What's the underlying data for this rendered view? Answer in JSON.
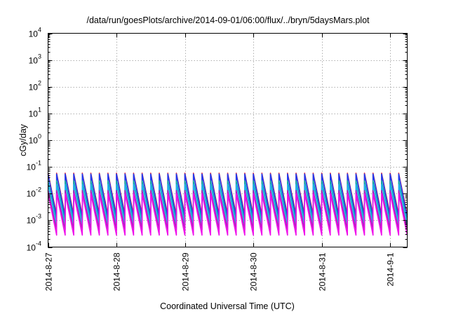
{
  "chart_data": {
    "type": "line",
    "title": "/data/run/goesPlots/archive/2014-09-01/06:00/flux/../bryn/5daysMars.plot",
    "xlabel": "Coordinated Universal Time (UTC)",
    "ylabel": "cGy/day",
    "yscale": "log",
    "ylim": [
      0.0001,
      10000
    ],
    "y_ticks": [
      {
        "base": "10",
        "exp": "-4"
      },
      {
        "base": "10",
        "exp": "-3"
      },
      {
        "base": "10",
        "exp": "-2"
      },
      {
        "base": "10",
        "exp": "-1"
      },
      {
        "base": "10",
        "exp": "0"
      },
      {
        "base": "10",
        "exp": "1"
      },
      {
        "base": "10",
        "exp": "2"
      },
      {
        "base": "10",
        "exp": "3"
      },
      {
        "base": "10",
        "exp": "4"
      }
    ],
    "xlim": [
      "2014-08-27 00:00",
      "2014-09-01 06:00"
    ],
    "x_ticks": [
      "2014-8-27",
      "2014-8-28",
      "2014-8-29",
      "2014-8-30",
      "2014-8-31",
      "2014-9-1"
    ],
    "grid": true,
    "legend": "none",
    "sawtooth_period_hours": 3,
    "series": [
      {
        "color": "#e8202a",
        "peak": 0.058,
        "trough": 0.0016
      },
      {
        "color": "#1f3cf0",
        "peak": 0.054,
        "trough": 0.0013
      },
      {
        "color": "#13a89e",
        "peak": 0.03,
        "trough": 0.0009
      },
      {
        "color": "#21b0f0",
        "peak": 0.022,
        "trough": 0.0007
      },
      {
        "color": "#a61fb4",
        "peak": 0.013,
        "trough": 0.00045
      },
      {
        "color": "#ef10ea",
        "peak": 0.01,
        "trough": 0.00028
      }
    ]
  }
}
